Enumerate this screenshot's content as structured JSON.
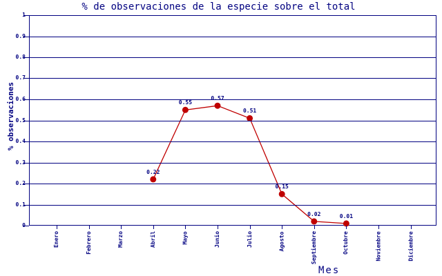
{
  "chart_data": {
    "type": "line",
    "title": "% de observaciones de la especie sobre el total",
    "xlabel": "Mes",
    "ylabel": "% observaciones",
    "categories": [
      "Enero",
      "Febrero",
      "Marzo",
      "Abril",
      "Mayo",
      "Junio",
      "Julio",
      "Agosto",
      "Septiembre",
      "Octubre",
      "Noviembre",
      "Diciembre"
    ],
    "values": [
      null,
      null,
      null,
      0.22,
      0.55,
      0.57,
      0.51,
      0.15,
      0.02,
      0.01,
      null,
      null
    ],
    "point_labels": [
      null,
      null,
      null,
      "0.22",
      "0.55",
      "0.57",
      "0.51",
      "0.15",
      "0.02",
      "0.01",
      null,
      null
    ],
    "ylim": [
      0,
      1
    ],
    "ytick_step": 0.1,
    "ytick_labels": [
      "0",
      "0.1",
      "0.2",
      "0.3",
      "0.4",
      "0.5",
      "0.6",
      "0.7",
      "0.8",
      "0.9",
      "1"
    ],
    "grid": true,
    "legend_position": "none",
    "colors": {
      "axis": "#000080",
      "series": "#c00000",
      "background": "#ffffff"
    }
  }
}
